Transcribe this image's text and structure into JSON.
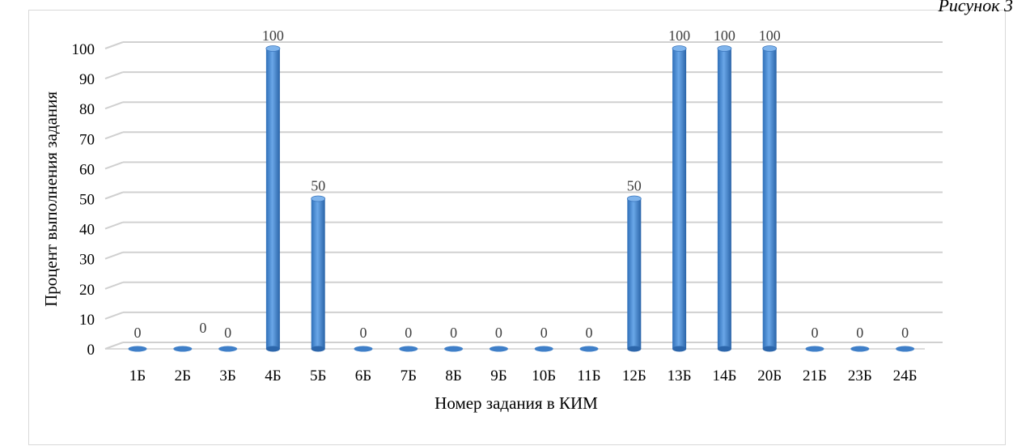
{
  "figure_caption": "Рисунок 3",
  "chart_data": {
    "type": "bar",
    "title": "",
    "xlabel": "Номер задания  в КИМ",
    "ylabel": "Процент выполнения задания",
    "ylim": [
      0,
      100
    ],
    "yticks": [
      0,
      10,
      20,
      30,
      40,
      50,
      60,
      70,
      80,
      90,
      100
    ],
    "grid": true,
    "legend": "none",
    "bar_color": "#4f8fd6",
    "categories": [
      "1Б",
      "2Б",
      "3Б",
      "4Б",
      "5Б",
      "6Б",
      "7Б",
      "8Б",
      "9Б",
      "10Б",
      "11Б",
      "12Б",
      "13Б",
      "14Б",
      "20Б",
      "21Б",
      "23Б",
      "24Б"
    ],
    "values": [
      0,
      0,
      0,
      100,
      50,
      0,
      0,
      0,
      0,
      0,
      0,
      50,
      100,
      100,
      100,
      0,
      0,
      0
    ],
    "data_labels": [
      "0",
      "",
      "0",
      "100",
      "50",
      "0",
      "0",
      "0",
      "0",
      "0",
      "0",
      "50",
      "100",
      "100",
      "100",
      "0",
      "0",
      "0"
    ],
    "data_labels_extra": [
      {
        "after_category": "2Б",
        "text": "0"
      }
    ]
  }
}
